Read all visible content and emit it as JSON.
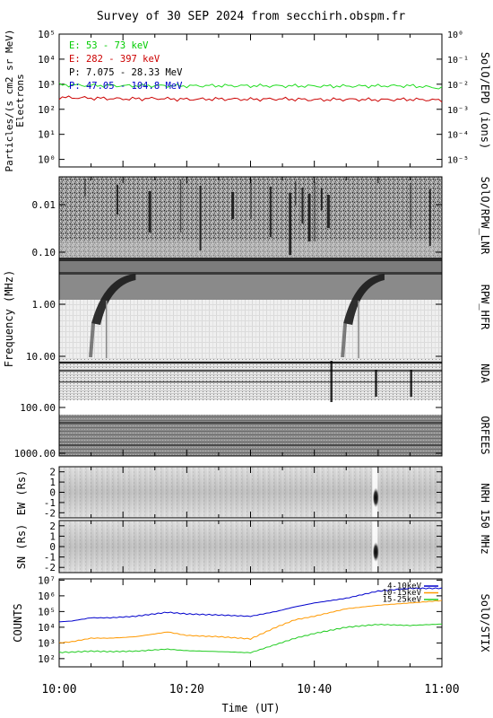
{
  "chart_data": {
    "title": "Survey of 30 SEP 2024 from secchirh.obspm.fr",
    "xlabel": "Time (UT)",
    "x_ticks": [
      "10:00",
      "10:20",
      "10:40",
      "11:00"
    ],
    "x_range": [
      "10:00",
      "11:00"
    ],
    "panels": [
      {
        "id": "particles",
        "type": "line",
        "ylabel": "Particles/(s cm2 sr MeV)",
        "ylabel2": "Electrons",
        "right_label": "SolO/EPD (ions)",
        "yscale": "log",
        "ylim": [
          0.5,
          100000
        ],
        "y_ticks": [
          "10⁰",
          "10¹",
          "10²",
          "10³",
          "10⁴",
          "10⁵"
        ],
        "y_tick_values": [
          1,
          10,
          100,
          1000,
          10000,
          100000
        ],
        "right_ticks": [
          "10⁻⁵",
          "10⁻⁴",
          "10⁻³",
          "10⁻²",
          "10⁻¹",
          "10⁰"
        ],
        "legend": [
          {
            "name": "E: 53 - 73 keV",
            "color": "#00cc00"
          },
          {
            "name": "E: 282 - 397 keV",
            "color": "#cc0000"
          },
          {
            "name": "P: 7.075 - 28.33 MeV",
            "color": "#000000"
          },
          {
            "name": "P: 47.05 - 104.8 MeV",
            "color": "#0000cc"
          }
        ],
        "series": [
          {
            "name": "E: 53 - 73 keV",
            "color": "#22dd22",
            "x_minutes": [
              0,
              5,
              10,
              15,
              20,
              25,
              30,
              35,
              40,
              45,
              50,
              55,
              60
            ],
            "values": [
              950,
              900,
              870,
              880,
              860,
              880,
              870,
              860,
              850,
              840,
              860,
              870,
              700
            ]
          },
          {
            "name": "E: 282 - 397 keV",
            "color": "#cc0000",
            "x_minutes": [
              0,
              5,
              10,
              15,
              20,
              25,
              30,
              35,
              40,
              45,
              50,
              55,
              60
            ],
            "values": [
              300,
              280,
              260,
              270,
              250,
              260,
              250,
              260,
              240,
              250,
              240,
              250,
              230
            ]
          }
        ]
      },
      {
        "id": "radio-spectra",
        "type": "heatmap",
        "ylabel": "Frequency (MHz)",
        "y_ticks": [
          "0.01",
          "0.10",
          "1.00",
          "10.00",
          "100.00",
          "1000.00"
        ],
        "y_tick_values": [
          0.01,
          0.1,
          1,
          10,
          100,
          1000
        ],
        "yscale": "log",
        "instruments": [
          "SolO/RPW_LNR",
          "RPW_HFR",
          "NDA",
          "ORFEES"
        ],
        "bursts": [
          {
            "start_minute": 4.5,
            "end_minute": 12
          },
          {
            "start_minute": 44,
            "end_minute": 51
          }
        ]
      },
      {
        "id": "nrh-ew",
        "type": "heatmap",
        "ylabel": "EW (Rs)",
        "y_ticks": [
          "-2",
          "-1",
          "0",
          "1",
          "2"
        ],
        "ylim": [
          -2.5,
          2.5
        ],
        "burst_minute": 49.5
      },
      {
        "id": "nrh-sn",
        "type": "heatmap",
        "ylabel": "SN (Rs)",
        "y_ticks": [
          "-2",
          "-1",
          "0",
          "1",
          "2"
        ],
        "ylim": [
          -2.5,
          2.5
        ],
        "right_label": "NRH 150 MHz",
        "burst_minute": 49.5
      },
      {
        "id": "stix",
        "type": "line",
        "ylabel": "COUNTS",
        "right_label": "SolO/STIX",
        "yscale": "log",
        "ylim": [
          30,
          12000000
        ],
        "y_ticks": [
          "10²",
          "10³",
          "10⁴",
          "10⁵",
          "10⁶",
          "10⁷"
        ],
        "y_tick_values": [
          100,
          1000,
          10000,
          100000,
          1000000,
          10000000
        ],
        "series": [
          {
            "name": "4-10keV",
            "color": "#0000cc",
            "x_minutes": [
              0,
              2,
              5,
              8,
              12,
              17,
              20,
              25,
              30,
              34,
              37,
              40,
              45,
              50,
              55,
              60
            ],
            "values": [
              22000,
              25000,
              40000,
              40000,
              50000,
              90000,
              70000,
              60000,
              50000,
              100000,
              200000,
              350000,
              700000,
              2000000,
              3000000,
              3000000
            ]
          },
          {
            "name": "10-15keV",
            "color": "#ff9900",
            "x_minutes": [
              0,
              2,
              5,
              8,
              12,
              17,
              20,
              25,
              30,
              34,
              37,
              40,
              45,
              50,
              55,
              60
            ],
            "values": [
              1000,
              1200,
              2000,
              2000,
              2500,
              5000,
              3000,
              2500,
              1800,
              10000,
              30000,
              50000,
              150000,
              250000,
              350000,
              500000
            ]
          },
          {
            "name": "15-25keV",
            "color": "#22cc22",
            "x_minutes": [
              0,
              2,
              5,
              8,
              12,
              17,
              20,
              25,
              30,
              34,
              37,
              40,
              45,
              50,
              55,
              60
            ],
            "values": [
              250,
              260,
              300,
              280,
              300,
              400,
              320,
              280,
              240,
              800,
              2000,
              4000,
              10000,
              15000,
              13000,
              16000
            ]
          }
        ]
      }
    ]
  }
}
